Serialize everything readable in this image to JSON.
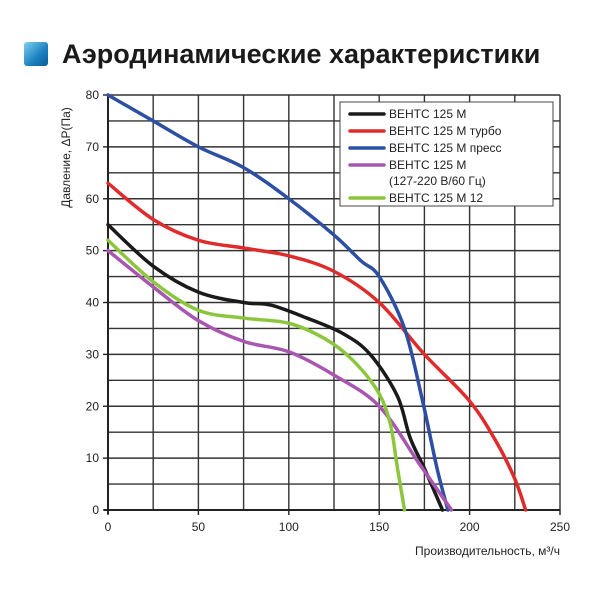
{
  "title": "Аэродинамические характеристики",
  "title_icon": "blue-square-icon",
  "chart_data": {
    "type": "line",
    "title": "Аэродинамические характеристики",
    "xlabel": "Производительность, м³/ч",
    "ylabel": "Давление, ΔP(Па)",
    "xlim": [
      0,
      250
    ],
    "ylim": [
      0,
      80
    ],
    "xticks": [
      "0",
      "50",
      "100",
      "150",
      "200",
      "250"
    ],
    "yticks": [
      "0",
      "10",
      "20",
      "30",
      "40",
      "50",
      "60",
      "70",
      "80"
    ],
    "grid": true,
    "grid_minor_x_step": 25,
    "grid_minor_y_step": 5,
    "legend_position": "top-right",
    "series": [
      {
        "name": "ВЕНТС 125 М",
        "color": "#1a1a1a",
        "x": [
          0,
          25,
          50,
          75,
          90,
          110,
          130,
          145,
          160,
          167,
          175,
          185
        ],
        "y": [
          55,
          47,
          42,
          40,
          39.5,
          37,
          34,
          30,
          22,
          14,
          8,
          0
        ]
      },
      {
        "name": "ВЕНТС 125 М турбо",
        "color": "#e02b2b",
        "x": [
          0,
          25,
          50,
          75,
          100,
          125,
          150,
          175,
          200,
          215,
          225,
          231
        ],
        "y": [
          63,
          56,
          52,
          50.5,
          49,
          46,
          40,
          30,
          21,
          13,
          6,
          0
        ]
      },
      {
        "name": "ВЕНТС 125 М пресс",
        "color": "#2c4fa3",
        "x": [
          0,
          25,
          50,
          75,
          100,
          125,
          140,
          150,
          164,
          174,
          182,
          188
        ],
        "y": [
          80,
          75,
          70,
          66,
          60,
          53,
          48,
          45,
          35,
          21,
          8,
          0
        ]
      },
      {
        "name": "ВЕНТС 125 М (127-220 В/60 Гц)",
        "name_line1": "ВЕНТС 125 М",
        "name_line2": "(127-220 В/60 Гц)",
        "color": "#a856b0",
        "x": [
          0,
          25,
          50,
          75,
          100,
          125,
          150,
          172,
          190
        ],
        "y": [
          50,
          43,
          36.5,
          32.5,
          30.5,
          26,
          20,
          9,
          0
        ]
      },
      {
        "name": "ВЕНТС 125 М 12",
        "color": "#8cc63f",
        "x": [
          0,
          25,
          50,
          75,
          100,
          120,
          135,
          149,
          156,
          160,
          164
        ],
        "y": [
          52,
          44,
          38.5,
          37,
          36,
          33,
          29,
          23,
          16.8,
          8.3,
          0
        ]
      }
    ]
  }
}
